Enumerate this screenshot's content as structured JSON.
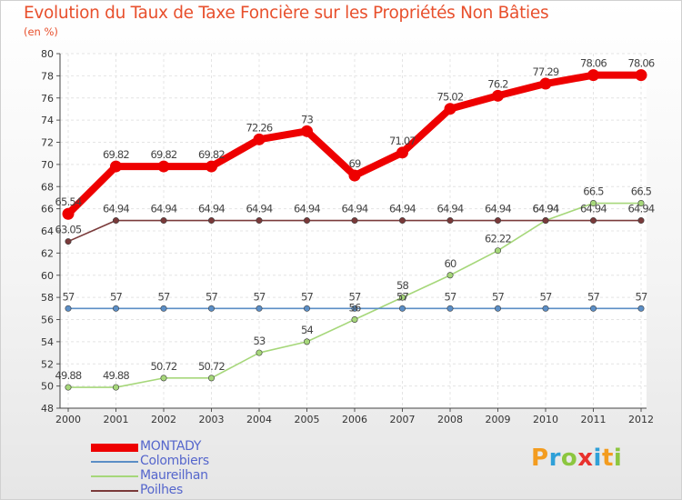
{
  "title": "Evolution du Taux de Taxe Foncière sur les Propriétés Non Bâties",
  "subtitle": "(en %)",
  "logo": {
    "letters": [
      "P",
      "r",
      "o",
      "x",
      "i",
      "t",
      "i"
    ],
    "colors": [
      "#f39c1f",
      "#2fa0d8",
      "#8cc63f",
      "#e8312d",
      "#2fa0d8",
      "#f39c1f",
      "#8cc63f"
    ]
  },
  "chart_data": {
    "type": "line",
    "title": "Evolution du Taux de Taxe Foncière sur les Propriétés Non Bâties",
    "ylabel": "(en %)",
    "xlabel": "",
    "x": [
      "2000",
      "2001",
      "2002",
      "2003",
      "2004",
      "2005",
      "2006",
      "2007",
      "2008",
      "2009",
      "2010",
      "2011",
      "2012"
    ],
    "ylim": [
      48,
      80
    ],
    "yticks": [
      48,
      50,
      52,
      54,
      56,
      58,
      60,
      62,
      64,
      66,
      68,
      70,
      72,
      74,
      76,
      78,
      80
    ],
    "ytick_labels": [
      "48",
      "50",
      "52",
      "54",
      "56",
      "58",
      "60",
      "62",
      "64",
      "66",
      "68",
      "70",
      "72",
      "74",
      "76",
      "78",
      "80"
    ],
    "series": [
      {
        "name": "MONTADY",
        "color": "#ee0000",
        "label_color": "#5566cc",
        "values": [
          65.54,
          69.82,
          69.82,
          69.82,
          72.26,
          73,
          69,
          71.07,
          75.02,
          76.2,
          77.29,
          78.06,
          78.06
        ],
        "labels": [
          "65.54",
          "69.82",
          "69.82",
          "69.82",
          "72.26",
          "73",
          "69",
          "71.07",
          "75.02",
          "76.2",
          "77.29",
          "78.06",
          "78.06"
        ]
      },
      {
        "name": "Colombiers",
        "color": "#5b8ec6",
        "label_color": "#5566cc",
        "values": [
          57,
          57,
          57,
          57,
          57,
          57,
          57,
          57,
          57,
          57,
          57,
          57,
          57
        ],
        "labels": [
          "57",
          "57",
          "57",
          "57",
          "57",
          "57",
          "57",
          "57",
          "57",
          "57",
          "57",
          "57",
          "57"
        ]
      },
      {
        "name": "Maureilhan",
        "color": "#a6d77a",
        "label_color": "#5566cc",
        "values": [
          49.88,
          49.88,
          50.72,
          50.72,
          53,
          54,
          56,
          58,
          60,
          62.22,
          64.94,
          66.5,
          66.5
        ],
        "labels": [
          "49.88",
          "49.88",
          "50.72",
          "50.72",
          "53",
          "54",
          "56",
          "58",
          "60",
          "62.22",
          "64.94",
          "66.5",
          "66.5"
        ]
      },
      {
        "name": "Poilhes",
        "color": "#7a3a3a",
        "label_color": "#5566cc",
        "values": [
          63.05,
          64.94,
          64.94,
          64.94,
          64.94,
          64.94,
          64.94,
          64.94,
          64.94,
          64.94,
          64.94,
          64.94,
          64.94
        ],
        "labels": [
          "63.05",
          "64.94",
          "64.94",
          "64.94",
          "64.94",
          "64.94",
          "64.94",
          "64.94",
          "64.94",
          "64.94",
          "64.94",
          "64.94",
          "64.94"
        ]
      }
    ]
  }
}
